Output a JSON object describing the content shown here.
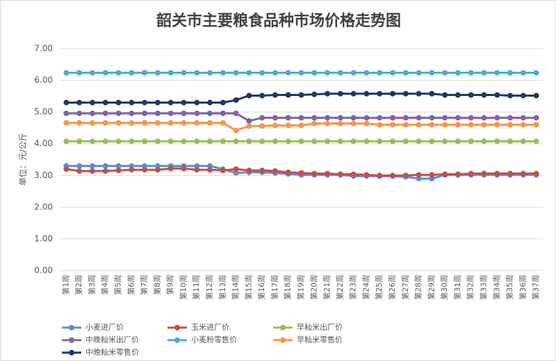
{
  "chart_data": {
    "type": "line",
    "title": "韶关市主要粮食品种市场价格走势图",
    "y_label": "单位：元/公斤",
    "categories": [
      "第1周",
      "第2周",
      "第3周",
      "第4周",
      "第5周",
      "第6周",
      "第7周",
      "第8周",
      "第9周",
      "第10周",
      "第11周",
      "第12周",
      "第13周",
      "第14周",
      "第15周",
      "第16周",
      "第17周",
      "第18周",
      "第19周",
      "第20周",
      "第21周",
      "第22周",
      "第23周",
      "第24周",
      "第25周",
      "第26周",
      "第27周",
      "第28周",
      "第29周",
      "第30周",
      "第31周",
      "第32周",
      "第33周",
      "第34周",
      "第35周",
      "第36周",
      "第37周"
    ],
    "series": [
      {
        "name": "小麦进厂价",
        "color": "#5b8fd0",
        "values": [
          3.3,
          3.3,
          3.3,
          3.3,
          3.3,
          3.3,
          3.3,
          3.3,
          3.3,
          3.3,
          3.3,
          3.3,
          3.2,
          3.08,
          3.1,
          3.1,
          3.08,
          3.05,
          3.02,
          3.02,
          3.02,
          3.02,
          2.98,
          2.98,
          2.98,
          2.98,
          2.96,
          2.9,
          2.9,
          3.02,
          3.02,
          3.02,
          3.02,
          3.02,
          3.02,
          3.02,
          3.02
        ]
      },
      {
        "name": "玉米进厂价",
        "color": "#c0504d",
        "values": [
          3.2,
          3.14,
          3.14,
          3.14,
          3.16,
          3.18,
          3.18,
          3.18,
          3.22,
          3.22,
          3.18,
          3.18,
          3.16,
          3.2,
          3.16,
          3.16,
          3.14,
          3.1,
          3.08,
          3.06,
          3.06,
          3.04,
          3.04,
          3.02,
          3.0,
          3.0,
          3.0,
          3.02,
          3.02,
          3.04,
          3.04,
          3.06,
          3.06,
          3.06,
          3.06,
          3.06,
          3.06
        ]
      },
      {
        "name": "早籼米出厂价",
        "color": "#9bbb59",
        "values": [
          4.08,
          4.08,
          4.08,
          4.08,
          4.08,
          4.08,
          4.08,
          4.08,
          4.08,
          4.08,
          4.08,
          4.08,
          4.08,
          4.08,
          4.08,
          4.08,
          4.08,
          4.08,
          4.08,
          4.08,
          4.08,
          4.08,
          4.08,
          4.08,
          4.08,
          4.08,
          4.08,
          4.08,
          4.08,
          4.08,
          4.08,
          4.08,
          4.08,
          4.08,
          4.08,
          4.08,
          4.08
        ]
      },
      {
        "name": "中晚籼米出厂价",
        "color": "#8064a2",
        "values": [
          4.96,
          4.96,
          4.96,
          4.96,
          4.96,
          4.96,
          4.96,
          4.96,
          4.96,
          4.96,
          4.96,
          4.96,
          4.96,
          4.96,
          4.72,
          4.82,
          4.82,
          4.82,
          4.82,
          4.82,
          4.82,
          4.82,
          4.82,
          4.82,
          4.82,
          4.82,
          4.82,
          4.82,
          4.82,
          4.82,
          4.82,
          4.82,
          4.82,
          4.82,
          4.82,
          4.82,
          4.82
        ]
      },
      {
        "name": "小麦粉零售价",
        "color": "#4bacc6",
        "values": [
          6.24,
          6.24,
          6.24,
          6.24,
          6.24,
          6.24,
          6.24,
          6.24,
          6.24,
          6.24,
          6.24,
          6.24,
          6.24,
          6.24,
          6.24,
          6.24,
          6.24,
          6.24,
          6.24,
          6.24,
          6.24,
          6.24,
          6.24,
          6.24,
          6.24,
          6.24,
          6.24,
          6.24,
          6.24,
          6.24,
          6.24,
          6.24,
          6.24,
          6.24,
          6.24,
          6.24,
          6.24
        ]
      },
      {
        "name": "早籼米零售价",
        "color": "#f79646",
        "values": [
          4.66,
          4.66,
          4.66,
          4.66,
          4.66,
          4.66,
          4.66,
          4.66,
          4.66,
          4.66,
          4.66,
          4.66,
          4.66,
          4.42,
          4.56,
          4.56,
          4.58,
          4.58,
          4.58,
          4.64,
          4.64,
          4.64,
          4.64,
          4.64,
          4.6,
          4.6,
          4.6,
          4.6,
          4.6,
          4.6,
          4.6,
          4.6,
          4.6,
          4.6,
          4.6,
          4.6,
          4.6
        ]
      },
      {
        "name": "中晚籼米零售价",
        "color": "#1f3864",
        "values": [
          5.3,
          5.3,
          5.3,
          5.3,
          5.3,
          5.3,
          5.3,
          5.3,
          5.3,
          5.3,
          5.3,
          5.3,
          5.3,
          5.38,
          5.52,
          5.52,
          5.54,
          5.54,
          5.54,
          5.56,
          5.58,
          5.58,
          5.58,
          5.58,
          5.58,
          5.58,
          5.58,
          5.58,
          5.58,
          5.54,
          5.54,
          5.54,
          5.54,
          5.54,
          5.52,
          5.52,
          5.52
        ]
      }
    ],
    "ylim": [
      0,
      7
    ],
    "yticks": [
      {
        "value": 0,
        "label": "0.00"
      },
      {
        "value": 1,
        "label": "1.00"
      },
      {
        "value": 2,
        "label": "2.00"
      },
      {
        "value": 3,
        "label": "3.00"
      },
      {
        "value": 4,
        "label": "4.00"
      },
      {
        "value": 5,
        "label": "5.00"
      },
      {
        "value": 6,
        "label": "6.00"
      },
      {
        "value": 7,
        "label": "7.00"
      }
    ],
    "grid": true
  }
}
